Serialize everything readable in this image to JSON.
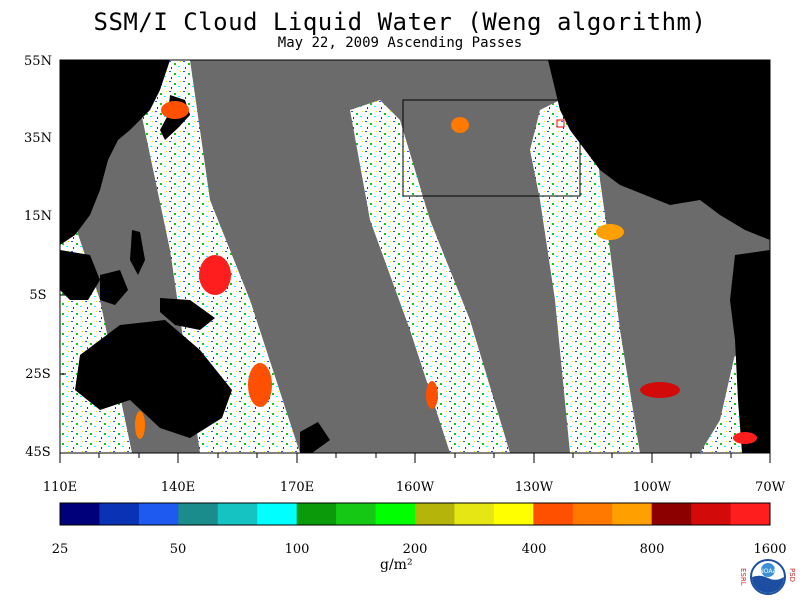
{
  "header": {
    "title": "SSM/I Cloud Liquid Water (Weng algorithm)",
    "subtitle": "May 22, 2009  Ascending Passes"
  },
  "map": {
    "lat_labels": [
      "55N",
      "35N",
      "15N",
      "5S",
      "25S",
      "45S"
    ],
    "lon_labels": [
      "110E",
      "140E",
      "170E",
      "160W",
      "130W",
      "100W",
      "70W"
    ],
    "land_color": "#000000",
    "gap_color": "#6b6b6b",
    "ocean_color": "#ffffff",
    "highlight_box_label": ""
  },
  "colorbar": {
    "colors": [
      "#00007a",
      "#0a32b4",
      "#1e5af0",
      "#1a8c8c",
      "#16c3c3",
      "#00ffff",
      "#0a9a0a",
      "#14c814",
      "#00ff00",
      "#b4b40a",
      "#e6e614",
      "#ffff00",
      "#ff5000",
      "#ff7800",
      "#ffa000",
      "#8c0000",
      "#d20a0a",
      "#ff1e1e"
    ],
    "tick_labels": [
      "25",
      "50",
      "100",
      "200",
      "400",
      "800",
      "1600"
    ],
    "unit_label": "g/m²"
  },
  "logo": {
    "left_letters": "ESRL",
    "right_letters": "PSD",
    "center_text": "NOAA"
  }
}
